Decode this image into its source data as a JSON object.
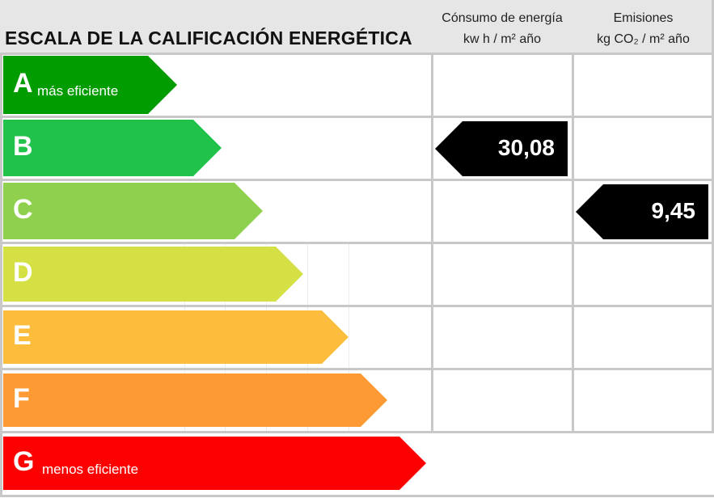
{
  "title": "ESCALA DE LA CALIFICACIÓN ENERGÉTICA",
  "columns": {
    "consumo": {
      "line1": "Cónsumo de energía",
      "line2": "kw h / m² año"
    },
    "emisiones": {
      "line1": "Emisiones",
      "line2": "kg CO₂ / m² año"
    }
  },
  "ratings": [
    {
      "letter": "A",
      "label": "más eficiente",
      "color": "#009c00"
    },
    {
      "letter": "B",
      "label": "",
      "color": "#20c24a"
    },
    {
      "letter": "C",
      "label": "",
      "color": "#8fd14f"
    },
    {
      "letter": "D",
      "label": "",
      "color": "#d4e043"
    },
    {
      "letter": "E",
      "label": "",
      "color": "#fbbd3b"
    },
    {
      "letter": "F",
      "label": "",
      "color": "#fd9a34"
    },
    {
      "letter": "G",
      "label": "menos eficiente",
      "color": "#fd0000"
    }
  ],
  "results": {
    "consumo": {
      "value": "30,08",
      "rating": "B"
    },
    "emisiones": {
      "value": "9,45",
      "rating": "C"
    }
  },
  "indicator_color": "#000000"
}
